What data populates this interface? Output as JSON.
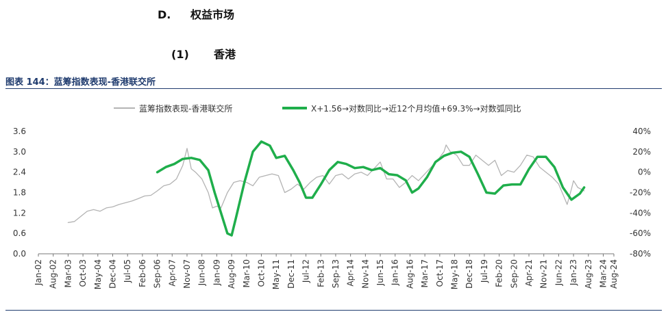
{
  "heading1": {
    "number": "D.",
    "title": "权益市场"
  },
  "heading2": {
    "number": "(1)",
    "title": "香港"
  },
  "caption": "图表 144：蓝筹指数表现-香港联交所",
  "colors": {
    "index_line": "#b3b3b3",
    "yoy_line": "#1fae4b",
    "caption": "#1f3b6e",
    "axis": "#777777"
  },
  "chart_data": {
    "type": "line",
    "title": "",
    "xlabel": "",
    "ylabel": "",
    "grid": false,
    "legend_position": "top",
    "x_ticks": [
      "Jan-02",
      "Aug-02",
      "Mar-03",
      "Oct-03",
      "May-04",
      "Dec-04",
      "Jul-05",
      "Feb-06",
      "Sep-06",
      "Apr-07",
      "Nov-07",
      "Jun-08",
      "Jan-09",
      "Aug-09",
      "Mar-10",
      "Oct-10",
      "May-11",
      "Dec-11",
      "Jul-12",
      "Feb-13",
      "Sep-13",
      "Apr-14",
      "Nov-14",
      "Jun-15",
      "Jan-16",
      "Aug-16",
      "Mar-17",
      "Oct-17",
      "May-18",
      "Dec-18",
      "Jul-19",
      "Feb-20",
      "Sep-20",
      "Apr-21",
      "Nov-21",
      "Jun-22",
      "Jan-23",
      "Aug-23",
      "Mar-24",
      "Aug-24"
    ],
    "y_left": {
      "ticks": [
        "0.0",
        "0.6",
        "1.2",
        "1.8",
        "2.4",
        "3.0",
        "3.6"
      ],
      "lim": [
        0,
        3.6
      ]
    },
    "y_right": {
      "ticks": [
        "-80%",
        "-60%",
        "-40%",
        "-20%",
        "0%",
        "20%",
        "40%"
      ],
      "lim": [
        -80,
        40
      ]
    },
    "series": [
      {
        "name": "蓝筹指数表现-香港联交所",
        "axis": "left",
        "x": [
          "2003-03",
          "2003-06",
          "2003-09",
          "2003-12",
          "2004-03",
          "2004-06",
          "2004-09",
          "2004-12",
          "2005-03",
          "2005-06",
          "2005-09",
          "2005-12",
          "2006-03",
          "2006-06",
          "2006-09",
          "2006-12",
          "2007-03",
          "2007-06",
          "2007-09",
          "2007-11",
          "2008-01",
          "2008-03",
          "2008-06",
          "2008-09",
          "2008-11",
          "2009-01",
          "2009-03",
          "2009-06",
          "2009-09",
          "2009-12",
          "2010-03",
          "2010-06",
          "2010-09",
          "2010-12",
          "2011-03",
          "2011-06",
          "2011-09",
          "2011-12",
          "2012-03",
          "2012-06",
          "2012-09",
          "2012-12",
          "2013-03",
          "2013-06",
          "2013-09",
          "2013-12",
          "2014-03",
          "2014-06",
          "2014-09",
          "2014-12",
          "2015-03",
          "2015-06",
          "2015-09",
          "2015-12",
          "2016-03",
          "2016-06",
          "2016-09",
          "2016-12",
          "2017-03",
          "2017-06",
          "2017-09",
          "2017-12",
          "2018-01",
          "2018-03",
          "2018-06",
          "2018-09",
          "2018-12",
          "2019-03",
          "2019-06",
          "2019-09",
          "2019-12",
          "2020-03",
          "2020-06",
          "2020-09",
          "2020-12",
          "2021-03",
          "2021-06",
          "2021-09",
          "2021-12",
          "2022-03",
          "2022-06",
          "2022-09",
          "2022-10",
          "2022-12",
          "2023-01",
          "2023-03",
          "2023-06"
        ],
        "values": [
          0.92,
          0.95,
          1.1,
          1.25,
          1.3,
          1.25,
          1.35,
          1.38,
          1.45,
          1.5,
          1.55,
          1.62,
          1.7,
          1.72,
          1.85,
          2.0,
          2.05,
          2.2,
          2.6,
          3.1,
          2.5,
          2.4,
          2.2,
          1.8,
          1.35,
          1.4,
          1.35,
          1.8,
          2.1,
          2.15,
          2.1,
          2.0,
          2.25,
          2.3,
          2.35,
          2.3,
          1.8,
          1.9,
          2.05,
          1.9,
          2.1,
          2.25,
          2.3,
          2.05,
          2.3,
          2.35,
          2.2,
          2.35,
          2.4,
          2.3,
          2.5,
          2.7,
          2.2,
          2.2,
          1.95,
          2.1,
          2.3,
          2.15,
          2.35,
          2.55,
          2.75,
          3.0,
          3.2,
          3.0,
          2.9,
          2.6,
          2.6,
          2.9,
          2.75,
          2.6,
          2.75,
          2.3,
          2.45,
          2.4,
          2.6,
          2.9,
          2.85,
          2.55,
          2.4,
          2.25,
          2.05,
          1.6,
          1.45,
          1.9,
          2.15,
          1.95,
          1.85
        ]
      },
      {
        "name": "X+1.56→对数同比→近12个月均值+69.3%→对数弧同比",
        "axis": "right",
        "x": [
          "2006-09",
          "2007-01",
          "2007-05",
          "2007-09",
          "2008-01",
          "2008-05",
          "2008-09",
          "2008-12",
          "2009-03",
          "2009-06",
          "2009-08",
          "2009-10",
          "2010-02",
          "2010-06",
          "2010-10",
          "2011-02",
          "2011-05",
          "2011-09",
          "2012-01",
          "2012-04",
          "2012-07",
          "2012-10",
          "2013-02",
          "2013-06",
          "2013-10",
          "2014-02",
          "2014-06",
          "2014-10",
          "2015-02",
          "2015-06",
          "2015-10",
          "2016-02",
          "2016-06",
          "2016-09",
          "2016-12",
          "2017-04",
          "2017-08",
          "2017-12",
          "2018-04",
          "2018-08",
          "2018-12",
          "2019-04",
          "2019-08",
          "2019-12",
          "2020-04",
          "2020-08",
          "2020-12",
          "2021-04",
          "2021-08",
          "2021-12",
          "2022-04",
          "2022-08",
          "2022-12",
          "2023-04",
          "2023-06"
        ],
        "values": [
          0,
          5,
          8,
          13,
          14,
          12,
          2,
          -20,
          -40,
          -60,
          -62,
          -45,
          -10,
          20,
          30,
          26,
          14,
          16,
          2,
          -10,
          -25,
          -25,
          -12,
          2,
          10,
          8,
          4,
          5,
          2,
          4,
          -2,
          -3,
          -8,
          -20,
          -16,
          -5,
          10,
          16,
          19,
          20,
          15,
          -2,
          -20,
          -21,
          -13,
          -12,
          -12,
          3,
          15,
          15,
          5,
          -15,
          -27,
          -21,
          -15
        ]
      }
    ]
  }
}
